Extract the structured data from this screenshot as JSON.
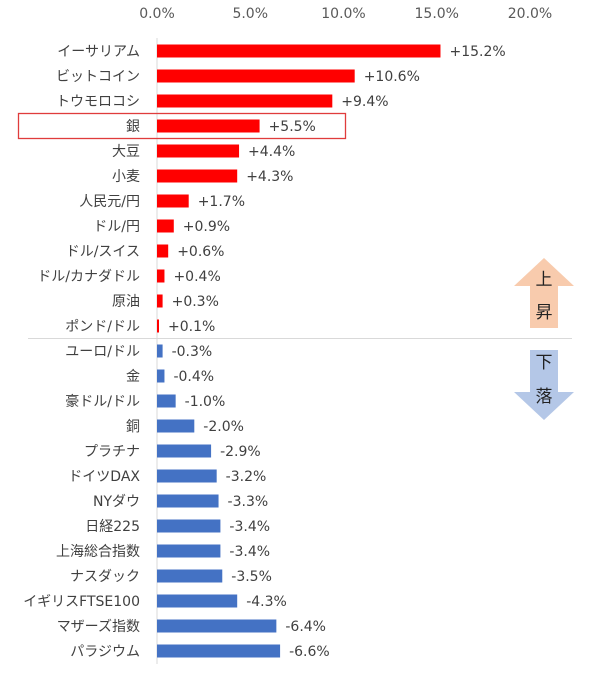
{
  "chart_data": {
    "type": "bar",
    "orientation": "horizontal",
    "xlim": [
      0,
      20
    ],
    "xticks": [
      "0.0%",
      "5.0%",
      "10.0%",
      "15.0%",
      "20.0%"
    ],
    "xaxis_position": "top",
    "grid": false,
    "categories": [
      "イーサリアム",
      "ビットコイン",
      "トウモロコシ",
      "銀",
      "大豆",
      "小麦",
      "人民元/円",
      "ドル/円",
      "ドル/スイス",
      "ドル/カナダドル",
      "原油",
      "ポンド/ドル",
      "ユーロ/ドル",
      "金",
      "豪ドル/ドル",
      "銅",
      "プラチナ",
      "ドイツDAX",
      "NYダウ",
      "日経225",
      "上海総合指数",
      "ナスダック",
      "イギリスFTSE100",
      "マザーズ指数",
      "パラジウム"
    ],
    "values": [
      15.2,
      10.6,
      9.4,
      5.5,
      4.4,
      4.3,
      1.7,
      0.9,
      0.6,
      0.4,
      0.3,
      0.1,
      -0.3,
      -0.4,
      -1.0,
      -2.0,
      -2.9,
      -3.2,
      -3.3,
      -3.4,
      -3.4,
      -3.5,
      -4.3,
      -6.4,
      -6.6
    ],
    "data_labels": [
      "+15.2%",
      "+10.6%",
      "+9.4%",
      "+5.5%",
      "+4.4%",
      "+4.3%",
      "+1.7%",
      "+0.9%",
      "+0.6%",
      "+0.4%",
      "+0.3%",
      "+0.1%",
      "-0.3%",
      "-0.4%",
      "-1.0%",
      "-2.0%",
      "-2.9%",
      "-3.2%",
      "-3.3%",
      "-3.4%",
      "-3.4%",
      "-3.5%",
      "-4.3%",
      "-6.4%",
      "-6.6%"
    ],
    "bars_show_magnitude": true,
    "highlighted_category": "銀",
    "colors": {
      "positive": "#ff0000",
      "negative": "#4472c4",
      "highlight_box": "#e03c3c",
      "up_arrow": "#f8cbad",
      "down_arrow": "#b4c7e7"
    },
    "annotations": {
      "up_label": [
        "上",
        "昇"
      ],
      "down_label": [
        "下",
        "落"
      ]
    }
  }
}
